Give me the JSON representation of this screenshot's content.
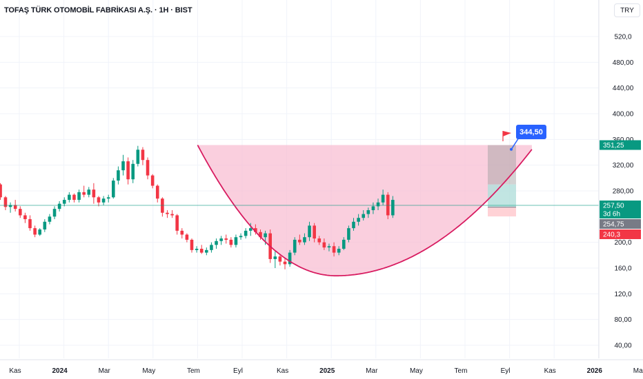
{
  "header": {
    "title": "TOFAŞ TÜRK OTOMOBİL FABRİKASI A.Ş. · 1H · BIST",
    "currency": "TRY"
  },
  "chart_data": {
    "type": "candlestick",
    "yticks": [
      "520,0",
      "480,00",
      "440,00",
      "400,00",
      "360,00",
      "320,00",
      "280,00",
      "200,0",
      "160,0",
      "120,0",
      "80,00",
      "40,00"
    ],
    "ytick_values": [
      520,
      480,
      440,
      400,
      360,
      320,
      280,
      200,
      160,
      120,
      80,
      40
    ],
    "ylim": [
      20,
      560
    ],
    "xticks": [
      {
        "label": "Kas",
        "bold": false,
        "pos": 0.0
      },
      {
        "label": "2024",
        "bold": true,
        "pos": 2.0
      },
      {
        "label": "Mar",
        "bold": false,
        "pos": 4.0
      },
      {
        "label": "May",
        "bold": false,
        "pos": 6.0
      },
      {
        "label": "Tem",
        "bold": false,
        "pos": 8.0
      },
      {
        "label": "Eyl",
        "bold": false,
        "pos": 10.0
      },
      {
        "label": "Kas",
        "bold": false,
        "pos": 12.0
      },
      {
        "label": "2025",
        "bold": true,
        "pos": 14.0
      },
      {
        "label": "Mar",
        "bold": false,
        "pos": 16.0
      },
      {
        "label": "May",
        "bold": false,
        "pos": 18.0
      },
      {
        "label": "Tem",
        "bold": false,
        "pos": 20.0
      },
      {
        "label": "Eyl",
        "bold": false,
        "pos": 22.0
      },
      {
        "label": "Kas",
        "bold": false,
        "pos": 24.0
      },
      {
        "label": "2026",
        "bold": true,
        "pos": 26.0
      },
      {
        "label": "Mar",
        "bold": false,
        "pos": 28.0
      }
    ],
    "candles": [
      [
        -0.85,
        290,
        292,
        266,
        270
      ],
      [
        -0.62,
        270,
        272,
        250,
        255
      ],
      [
        -0.4,
        255,
        262,
        246,
        258
      ],
      [
        -0.18,
        258,
        266,
        248,
        252
      ],
      [
        0.04,
        252,
        256,
        238,
        242
      ],
      [
        0.26,
        242,
        246,
        230,
        236
      ],
      [
        0.48,
        236,
        242,
        218,
        222
      ],
      [
        0.7,
        222,
        226,
        208,
        212
      ],
      [
        0.92,
        212,
        222,
        210,
        220
      ],
      [
        1.14,
        220,
        236,
        216,
        232
      ],
      [
        1.36,
        232,
        244,
        228,
        240
      ],
      [
        1.58,
        240,
        256,
        236,
        252
      ],
      [
        1.8,
        252,
        264,
        248,
        260
      ],
      [
        2.02,
        260,
        270,
        256,
        266
      ],
      [
        2.24,
        266,
        278,
        262,
        274
      ],
      [
        2.46,
        274,
        276,
        262,
        266
      ],
      [
        2.68,
        266,
        282,
        262,
        278
      ],
      [
        2.9,
        278,
        288,
        270,
        274
      ],
      [
        3.12,
        274,
        286,
        270,
        282
      ],
      [
        3.34,
        282,
        292,
        260,
        270
      ],
      [
        3.56,
        270,
        272,
        256,
        262
      ],
      [
        3.78,
        262,
        272,
        258,
        268
      ],
      [
        4.0,
        268,
        274,
        262,
        270
      ],
      [
        4.22,
        270,
        300,
        268,
        296
      ],
      [
        4.44,
        296,
        318,
        290,
        312
      ],
      [
        4.66,
        312,
        336,
        304,
        326
      ],
      [
        4.88,
        326,
        332,
        290,
        298
      ],
      [
        5.1,
        298,
        328,
        292,
        322
      ],
      [
        5.32,
        322,
        350,
        318,
        344
      ],
      [
        5.54,
        344,
        348,
        320,
        328
      ],
      [
        5.76,
        328,
        332,
        298,
        304
      ],
      [
        5.98,
        304,
        306,
        284,
        288
      ],
      [
        6.2,
        288,
        290,
        262,
        268
      ],
      [
        6.42,
        268,
        270,
        240,
        246
      ],
      [
        6.64,
        246,
        250,
        238,
        244
      ],
      [
        6.86,
        244,
        250,
        238,
        242
      ],
      [
        7.08,
        242,
        244,
        212,
        218
      ],
      [
        7.3,
        218,
        222,
        206,
        212
      ],
      [
        7.52,
        212,
        214,
        200,
        204
      ],
      [
        7.74,
        204,
        206,
        184,
        188
      ],
      [
        7.96,
        188,
        194,
        184,
        190
      ],
      [
        8.18,
        190,
        196,
        182,
        184
      ],
      [
        8.4,
        184,
        192,
        180,
        188
      ],
      [
        8.62,
        188,
        200,
        184,
        196
      ],
      [
        8.84,
        196,
        206,
        190,
        202
      ],
      [
        9.06,
        202,
        210,
        196,
        206
      ],
      [
        9.28,
        206,
        212,
        198,
        204
      ],
      [
        9.5,
        204,
        208,
        192,
        196
      ],
      [
        9.72,
        196,
        212,
        192,
        208
      ],
      [
        9.94,
        208,
        214,
        204,
        210
      ],
      [
        10.16,
        210,
        222,
        206,
        218
      ],
      [
        10.38,
        218,
        230,
        210,
        222
      ],
      [
        10.6,
        222,
        228,
        212,
        216
      ],
      [
        10.82,
        216,
        220,
        204,
        208
      ],
      [
        11.04,
        208,
        218,
        196,
        214
      ],
      [
        11.26,
        214,
        220,
        168,
        174
      ],
      [
        11.48,
        174,
        186,
        160,
        178
      ],
      [
        11.7,
        178,
        182,
        164,
        170
      ],
      [
        11.92,
        170,
        176,
        158,
        166
      ],
      [
        12.14,
        166,
        188,
        162,
        184
      ],
      [
        12.36,
        184,
        208,
        180,
        204
      ],
      [
        12.58,
        204,
        212,
        196,
        200
      ],
      [
        12.8,
        200,
        214,
        196,
        208
      ],
      [
        13.02,
        208,
        232,
        202,
        226
      ],
      [
        13.24,
        226,
        230,
        200,
        206
      ],
      [
        13.46,
        206,
        210,
        196,
        200
      ],
      [
        13.68,
        200,
        206,
        188,
        192
      ],
      [
        13.9,
        192,
        198,
        186,
        194
      ],
      [
        14.12,
        194,
        200,
        178,
        184
      ],
      [
        14.34,
        184,
        194,
        180,
        190
      ],
      [
        14.56,
        190,
        208,
        188,
        204
      ],
      [
        14.78,
        204,
        226,
        200,
        222
      ],
      [
        15.0,
        222,
        238,
        218,
        232
      ],
      [
        15.22,
        232,
        244,
        226,
        238
      ],
      [
        15.44,
        238,
        250,
        234,
        244
      ],
      [
        15.66,
        244,
        254,
        238,
        250
      ],
      [
        15.88,
        250,
        262,
        244,
        256
      ],
      [
        16.1,
        256,
        268,
        250,
        262
      ],
      [
        16.32,
        262,
        282,
        258,
        274
      ],
      [
        16.54,
        274,
        278,
        236,
        242
      ],
      [
        16.76,
        242,
        272,
        238,
        266
      ]
    ],
    "current_price": 257.5,
    "current_price_label": "257,50",
    "countdown_label": "3d 6h",
    "target_level": 351.25,
    "target_label": "351,25",
    "entry_level": 254.75,
    "entry_label": "254,75",
    "stop_level": 240.3,
    "stop_label": "240,3",
    "target_callout": "344,50",
    "target_callout_value": 344.5,
    "cup": {
      "left_x": 8.0,
      "rim_price": 351.25,
      "bottom_x": 14.2,
      "bottom_price": 148,
      "right_x": 23.0,
      "right_price": 344.5
    },
    "colors": {
      "up": "#089981",
      "down": "#f23645",
      "cup_fill": "#f8bbd0",
      "cup_line": "#d81b60",
      "target_tag": "#089981",
      "entry_tag": "#787b86",
      "stop_tag": "#f23645",
      "callout": "#2962ff",
      "profit_zone": "#b2dfdb",
      "loss_zone": "#ffcdd2",
      "gray_zone": "#9e9e9e"
    }
  }
}
